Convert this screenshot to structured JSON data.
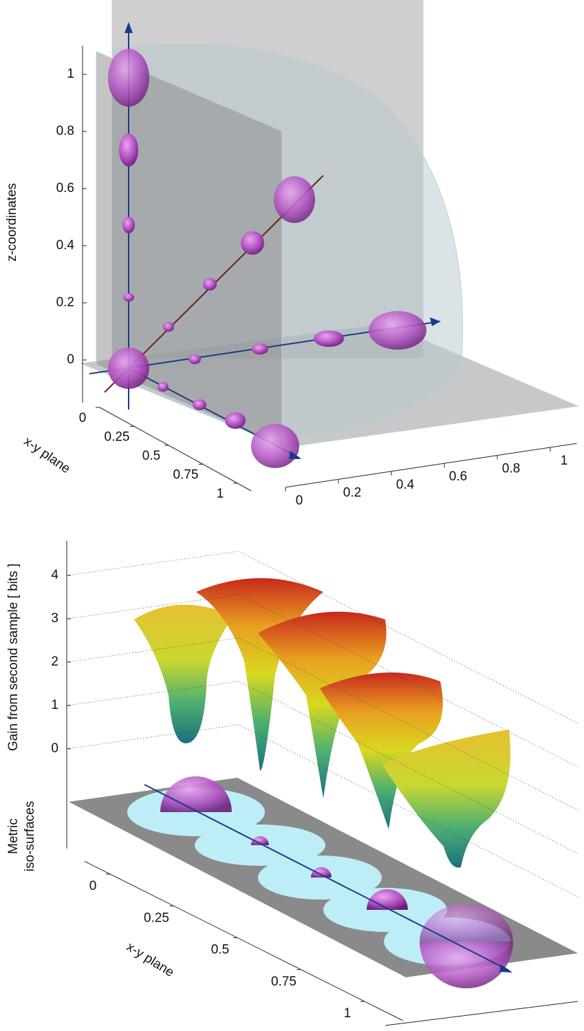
{
  "chart_data": [
    {
      "type": "scatter3d",
      "zlabel": "z-coordinates",
      "ylabel": "x-y plane",
      "zlim": [
        -0.15,
        1.1
      ],
      "zticks": [
        0,
        0.2,
        0.4,
        0.6,
        0.8,
        1
      ],
      "xlim": [
        0,
        1.1
      ],
      "xticks": [
        0,
        0.2,
        0.4,
        0.6,
        0.8,
        1
      ],
      "ylim": [
        0,
        1.1
      ],
      "yticks": [
        0,
        0.25,
        0.5,
        0.75,
        1
      ]
    },
    {
      "type": "surface3d",
      "zlabel": "Gain from second sample [ bits ]",
      "zlabel2": [
        "Metric",
        "iso-surfaces"
      ],
      "ylabel": "x-y plane",
      "zlim": [
        -2.3,
        4.8
      ],
      "zticks": [
        0,
        1,
        2,
        3,
        4
      ],
      "ylim": [
        -0.1,
        1.15
      ],
      "yticks": [
        0,
        0.25,
        0.5,
        0.75,
        1
      ],
      "grid": true
    }
  ]
}
